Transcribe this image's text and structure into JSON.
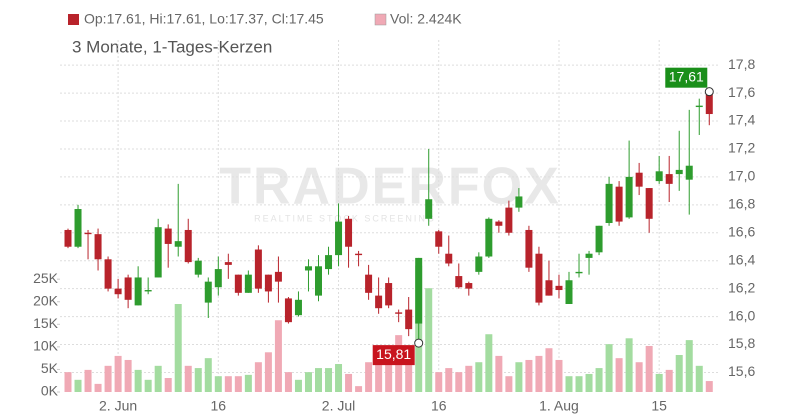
{
  "chart_data": {
    "type": "candlestick",
    "header": {
      "ohlc": "Op:17.61, Hi:17.61, Lo:17.37, Cl:17.45",
      "volume": "Vol: 2.424K"
    },
    "subtitle": "3 Monate, 1-Tages-Kerzen",
    "watermark": {
      "title": "TRADERFOX",
      "subtitle": "REALTIME STOCK SCREENING"
    },
    "categories": [
      null,
      null,
      null,
      null,
      null,
      "2. Jun",
      null,
      null,
      null,
      null,
      null,
      null,
      null,
      null,
      null,
      "16",
      null,
      null,
      null,
      null,
      null,
      null,
      null,
      null,
      null,
      null,
      null,
      "2. Jul",
      null,
      null,
      null,
      null,
      null,
      null,
      null,
      null,
      null,
      "16",
      null,
      null,
      null,
      null,
      null,
      null,
      null,
      null,
      null,
      null,
      null,
      "1. Aug",
      null,
      null,
      null,
      null,
      null,
      null,
      null,
      null,
      null,
      "15",
      null,
      null,
      null,
      null,
      null
    ],
    "open": [
      16.62,
      16.5,
      16.6,
      16.59,
      16.41,
      16.2,
      16.28,
      16.08,
      16.18,
      16.28,
      16.63,
      16.5,
      16.62,
      16.3,
      16.1,
      16.21,
      16.39,
      16.3,
      16.17,
      16.48,
      16.3,
      16.32,
      16.13,
      16.01,
      16.33,
      16.15,
      16.34,
      16.44,
      16.7,
      16.45,
      16.3,
      16.15,
      16.24,
      16.03,
      16.05,
      15.95,
      16.7,
      16.61,
      16.45,
      16.29,
      16.24,
      16.32,
      16.43,
      16.68,
      16.78,
      16.78,
      16.62,
      16.45,
      16.26,
      16.22,
      16.09,
      16.31,
      16.42,
      16.46,
      16.67,
      16.93,
      16.71,
      17.03,
      16.92,
      16.97,
      17.02,
      17.02,
      16.98,
      17.5,
      17.61
    ],
    "high": [
      16.63,
      16.8,
      16.62,
      16.63,
      16.43,
      16.27,
      16.3,
      16.36,
      16.28,
      16.7,
      16.66,
      16.95,
      16.7,
      16.42,
      16.28,
      16.43,
      16.45,
      16.3,
      16.33,
      16.51,
      16.3,
      16.43,
      16.14,
      16.18,
      16.41,
      16.44,
      16.5,
      16.81,
      16.72,
      16.47,
      16.37,
      16.28,
      16.28,
      16.05,
      16.14,
      16.42,
      17.2,
      16.62,
      16.58,
      16.38,
      16.25,
      16.46,
      16.71,
      16.69,
      16.83,
      16.92,
      16.65,
      16.5,
      16.4,
      16.3,
      16.32,
      16.45,
      16.47,
      16.65,
      17.0,
      16.97,
      17.26,
      17.1,
      16.92,
      17.15,
      17.15,
      17.33,
      17.48,
      17.56,
      17.61
    ],
    "low": [
      16.49,
      16.49,
      16.41,
      16.33,
      16.18,
      16.13,
      16.06,
      16.08,
      16.16,
      16.28,
      16.35,
      16.43,
      16.38,
      16.28,
      15.99,
      16.15,
      16.27,
      16.15,
      16.17,
      16.17,
      16.1,
      16.1,
      15.95,
      16.0,
      16.18,
      16.11,
      16.3,
      16.36,
      16.35,
      16.36,
      16.12,
      16.02,
      16.06,
      15.96,
      15.86,
      15.81,
      16.65,
      16.45,
      16.36,
      16.2,
      16.15,
      16.3,
      16.42,
      16.6,
      16.58,
      16.75,
      16.32,
      16.08,
      16.15,
      16.13,
      16.09,
      16.28,
      16.3,
      16.44,
      16.65,
      16.65,
      16.7,
      16.87,
      16.6,
      16.95,
      16.82,
      16.9,
      16.73,
      17.3,
      17.37
    ],
    "close": [
      16.5,
      16.77,
      16.59,
      16.41,
      16.2,
      16.16,
      16.12,
      16.28,
      16.19,
      16.64,
      16.52,
      16.54,
      16.39,
      16.4,
      16.25,
      16.34,
      16.37,
      16.17,
      16.3,
      16.2,
      16.18,
      16.25,
      15.96,
      16.12,
      16.36,
      16.36,
      16.44,
      16.68,
      16.5,
      16.44,
      16.17,
      16.06,
      16.08,
      16.02,
      15.91,
      16.42,
      16.84,
      16.5,
      16.38,
      16.21,
      16.2,
      16.43,
      16.7,
      16.65,
      16.6,
      16.86,
      16.35,
      16.1,
      16.15,
      16.19,
      16.26,
      16.32,
      16.45,
      16.65,
      16.95,
      16.68,
      17.0,
      16.93,
      16.7,
      17.04,
      16.95,
      17.05,
      17.08,
      17.51,
      17.45
    ],
    "volume": [
      4.4,
      2.7,
      4.9,
      1.8,
      5.8,
      8.0,
      7.1,
      4.9,
      2.7,
      5.8,
      3.1,
      19.5,
      5.8,
      5.3,
      7.5,
      3.5,
      3.5,
      3.5,
      3.8,
      6.6,
      8.8,
      15.9,
      4.4,
      2.7,
      4.4,
      5.3,
      5.3,
      6.2,
      4.0,
      1.3,
      6.6,
      8.8,
      9.7,
      12.6,
      6.2,
      28,
      23,
      4.4,
      5.3,
      4.4,
      5.8,
      6.6,
      12.8,
      8.0,
      3.5,
      6.6,
      7.1,
      8.0,
      9.7,
      7.1,
      3.5,
      3.5,
      4.0,
      5.3,
      10.6,
      7.5,
      11.9,
      6.6,
      10.2,
      4.0,
      4.9,
      8.2,
      11.5,
      5.8,
      2.424
    ],
    "colors": {
      "up": "#2e9c2e",
      "down": "#b8232b",
      "volume_up": "#a3dca0",
      "volume_down": "#f0a9b5"
    },
    "ylim": [
      15.46,
      17.98
    ],
    "yticks": [
      {
        "value": 15.6,
        "label": "15,6"
      },
      {
        "value": 15.8,
        "label": "15,8"
      },
      {
        "value": 16.0,
        "label": "16,0"
      },
      {
        "value": 16.2,
        "label": "16,2"
      },
      {
        "value": 16.4,
        "label": "16,4"
      },
      {
        "value": 16.6,
        "label": "16,6"
      },
      {
        "value": 16.8,
        "label": "16,8"
      },
      {
        "value": 17.0,
        "label": "17,0"
      },
      {
        "value": 17.2,
        "label": "17,2"
      },
      {
        "value": 17.4,
        "label": "17,4"
      },
      {
        "value": 17.6,
        "label": "17,6"
      },
      {
        "value": 17.8,
        "label": "17,8"
      }
    ],
    "y2lim": [
      0,
      78
    ],
    "y2ticks": [
      {
        "value": 0,
        "label": "0K"
      },
      {
        "value": 5,
        "label": "5K"
      },
      {
        "value": 10,
        "label": "10K"
      },
      {
        "value": 15,
        "label": "15K"
      },
      {
        "value": 20,
        "label": "20K"
      },
      {
        "value": 25,
        "label": "25K"
      }
    ],
    "annotations": [
      {
        "value": 17.61,
        "label": "17,61",
        "color": "#1a8f1a"
      },
      {
        "value": 15.81,
        "label": "15,81",
        "color": "#c8141e"
      }
    ],
    "grid": true
  }
}
